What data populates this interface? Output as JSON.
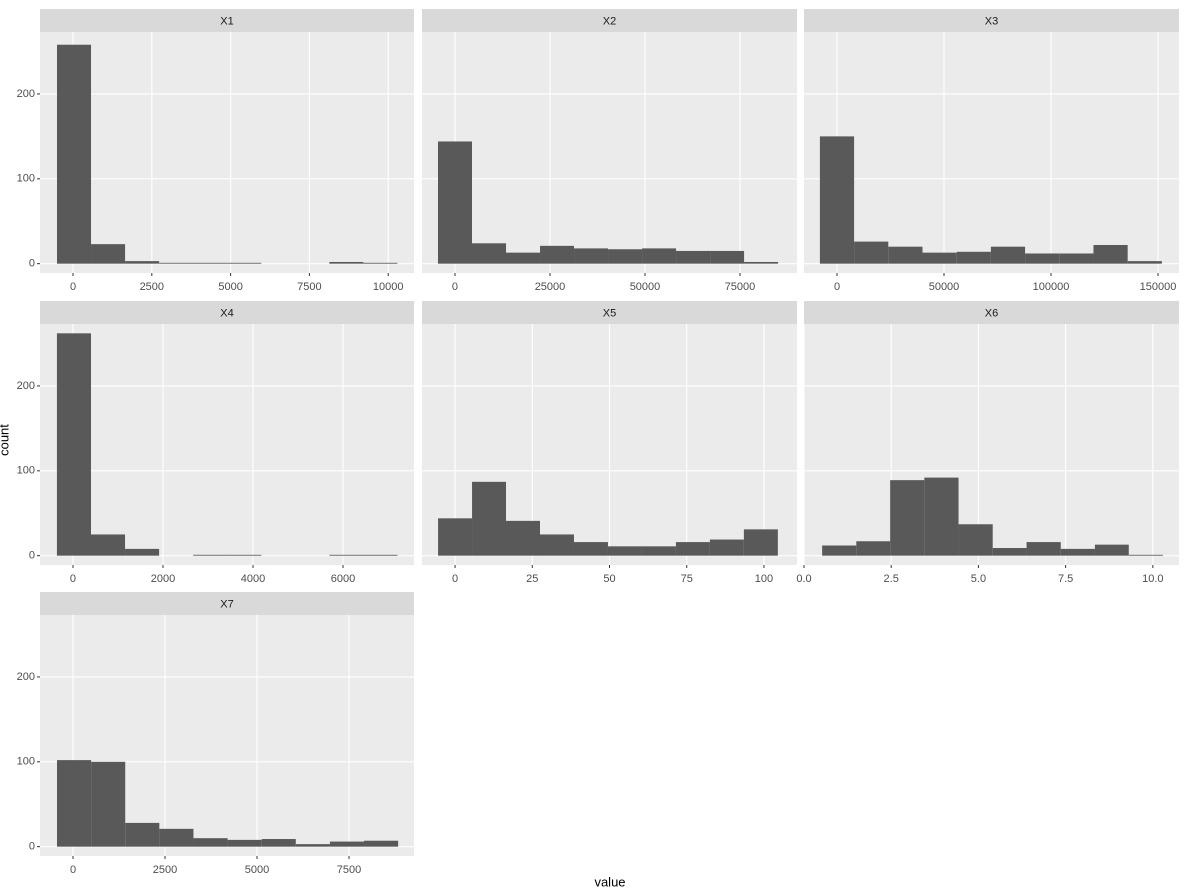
{
  "chart_data": [
    {
      "type": "histogram",
      "title": "X1",
      "xlabel": "value",
      "ylabel": "count",
      "color": "#595959",
      "bins": [
        -508,
        572,
        1652,
        2732,
        3812,
        4892,
        5972,
        7052,
        8132,
        9212,
        10292
      ],
      "counts": [
        258,
        23,
        3,
        1,
        1,
        1,
        0,
        0,
        2,
        1
      ],
      "xlim": [
        -1047,
        10818
      ],
      "xticks": [
        0,
        2500,
        5000,
        7500,
        10000
      ],
      "ylim": [
        -11,
        273
      ],
      "yticks": [
        0,
        100,
        200
      ]
    },
    {
      "type": "histogram",
      "title": "X2",
      "color": "#595959",
      "bins": [
        -4475,
        4475,
        13425,
        22375,
        31325,
        40275,
        49225,
        58175,
        67125,
        76075,
        85025
      ],
      "counts": [
        144,
        24,
        13,
        21,
        18,
        17,
        18,
        15,
        15,
        2
      ],
      "xlim": [
        -8684,
        90000
      ],
      "xticks": [
        0,
        25000,
        50000,
        75000
      ],
      "ylim": [
        -11,
        273
      ],
      "yticks": [
        0,
        100,
        200
      ]
    },
    {
      "type": "histogram",
      "title": "X3",
      "color": "#595959",
      "bins": [
        -7990,
        7990,
        23970,
        39950,
        55930,
        71910,
        87890,
        103870,
        119850,
        135830,
        151810
      ],
      "counts": [
        150,
        26,
        20,
        13,
        14,
        20,
        12,
        12,
        22,
        3
      ],
      "xlim": [
        -15421,
        159813
      ],
      "xticks": [
        0,
        50000,
        100000,
        150000
      ],
      "ylim": [
        -11,
        273
      ],
      "yticks": [
        0,
        100,
        200
      ]
    },
    {
      "type": "histogram",
      "title": "X4",
      "color": "#595959",
      "bins": [
        -357,
        400,
        1157,
        1914,
        2671,
        3428,
        4185,
        4942,
        5699,
        6456,
        7213
      ],
      "counts": [
        262,
        25,
        8,
        0,
        1,
        1,
        0,
        0,
        1,
        1
      ],
      "xlim": [
        -733,
        7578
      ],
      "xticks": [
        0,
        2000,
        4000,
        6000
      ],
      "ylim": [
        -11,
        273
      ],
      "yticks": [
        0,
        100,
        200
      ]
    },
    {
      "type": "histogram",
      "title": "X5",
      "color": "#595959",
      "bins": [
        -5.5,
        5.5,
        16.5,
        27.5,
        38.5,
        49.5,
        60.5,
        71.5,
        82.5,
        93.5,
        104.5
      ],
      "counts": [
        44,
        87,
        41,
        25,
        16,
        11,
        11,
        16,
        19,
        31
      ],
      "xlim": [
        -10.7,
        110.7
      ],
      "xticks": [
        0,
        25,
        50,
        75,
        100
      ],
      "ylim": [
        -11,
        273
      ],
      "yticks": [
        0,
        100,
        200
      ]
    },
    {
      "type": "histogram",
      "title": "X6",
      "color": "#595959",
      "bins": [
        0.52,
        1.5,
        2.47,
        3.45,
        4.43,
        5.41,
        6.38,
        7.36,
        8.34,
        9.31,
        10.29
      ],
      "counts": [
        12,
        17,
        89,
        92,
        37,
        9,
        16,
        8,
        13,
        1
      ],
      "xlim": [
        0,
        10.75
      ],
      "xticks": [
        {
          "value": 0,
          "label": "0.0"
        },
        {
          "value": 2.5,
          "label": "2.5"
        },
        {
          "value": 5,
          "label": "5.0"
        },
        {
          "value": 7.5,
          "label": "7.5"
        },
        {
          "value": 10,
          "label": "10.0"
        }
      ],
      "ylim": [
        -11,
        273
      ],
      "yticks": [
        0,
        100,
        200
      ]
    },
    {
      "type": "histogram",
      "title": "X7",
      "color": "#595959",
      "bins": [
        -435,
        492,
        1419,
        2346,
        3273,
        4200,
        5127,
        6054,
        6981,
        7908,
        8835
      ],
      "counts": [
        102,
        100,
        28,
        21,
        10,
        8,
        9,
        3,
        6,
        7
      ],
      "xlim": [
        -897,
        9266
      ],
      "xticks": [
        0,
        2500,
        5000,
        7500
      ],
      "ylim": [
        -11,
        273
      ],
      "yticks": [
        0,
        100,
        200
      ]
    }
  ]
}
